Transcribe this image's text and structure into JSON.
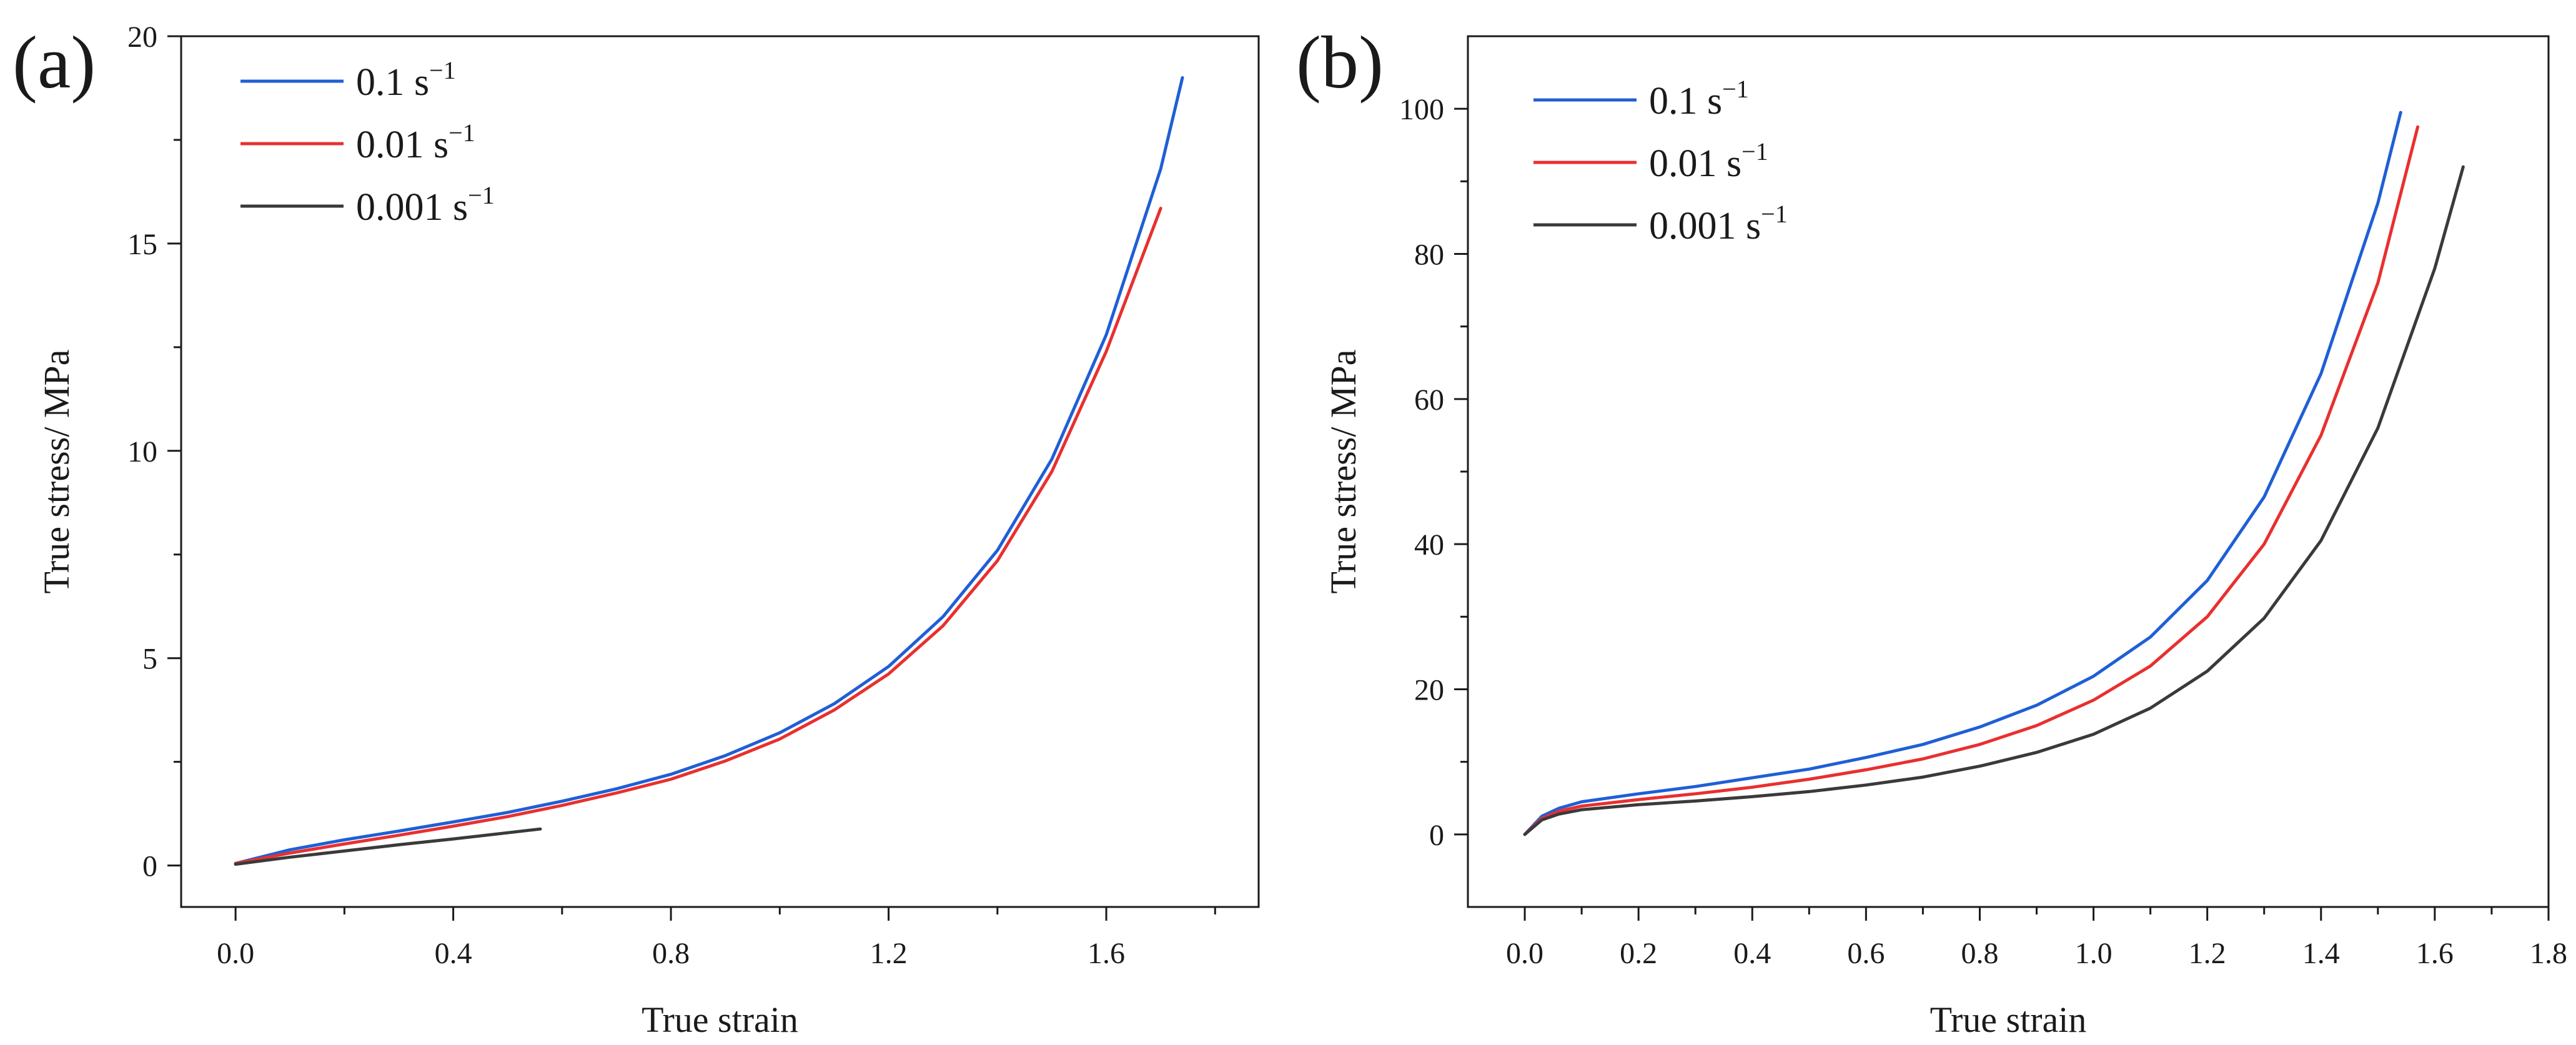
{
  "chart_data": [
    {
      "type": "line",
      "panel_label": "(a)",
      "xlabel": "True strain",
      "ylabel": "True stress/ MPa",
      "xlim": [
        -0.1,
        1.88
      ],
      "ylim": [
        -1,
        20
      ],
      "xticks": [
        0.0,
        0.4,
        0.8,
        1.2,
        1.6
      ],
      "xtick_labels": [
        "0.0",
        "0.4",
        "0.8",
        "1.2",
        "1.6"
      ],
      "yticks": [
        0,
        5,
        10,
        15,
        20
      ],
      "ytick_labels": [
        "0",
        "5",
        "10",
        "15",
        "20"
      ],
      "legend_position": "top-left",
      "series": [
        {
          "name": "0.1 s",
          "superscript": "−1",
          "color": "#1f5fd6",
          "x": [
            0,
            0.1,
            0.2,
            0.3,
            0.4,
            0.5,
            0.6,
            0.7,
            0.8,
            0.9,
            1.0,
            1.1,
            1.2,
            1.3,
            1.4,
            1.5,
            1.6,
            1.7,
            1.74
          ],
          "y": [
            0.05,
            0.38,
            0.62,
            0.83,
            1.05,
            1.28,
            1.55,
            1.85,
            2.2,
            2.65,
            3.2,
            3.9,
            4.8,
            6.0,
            7.6,
            9.8,
            12.8,
            16.8,
            19.0
          ]
        },
        {
          "name": "0.01 s",
          "superscript": "−1",
          "color": "#e8302f",
          "x": [
            0,
            0.1,
            0.2,
            0.3,
            0.4,
            0.5,
            0.6,
            0.7,
            0.8,
            0.9,
            1.0,
            1.1,
            1.2,
            1.3,
            1.4,
            1.5,
            1.6,
            1.7
          ],
          "y": [
            0.05,
            0.3,
            0.52,
            0.73,
            0.95,
            1.18,
            1.45,
            1.75,
            2.08,
            2.52,
            3.05,
            3.75,
            4.62,
            5.78,
            7.35,
            9.5,
            12.4,
            15.85
          ]
        },
        {
          "name": "0.001 s",
          "superscript": "−1",
          "color": "#3a3a3a",
          "x": [
            0,
            0.1,
            0.2,
            0.3,
            0.4,
            0.5,
            0.56
          ],
          "y": [
            0.03,
            0.2,
            0.35,
            0.5,
            0.64,
            0.79,
            0.88
          ]
        }
      ]
    },
    {
      "type": "line",
      "panel_label": "(b)",
      "xlabel": "True strain",
      "ylabel": "True stress/ MPa",
      "xlim": [
        -0.1,
        1.8
      ],
      "ylim": [
        -10,
        110
      ],
      "xticks": [
        0.0,
        0.2,
        0.4,
        0.6,
        0.8,
        1.0,
        1.2,
        1.4,
        1.6,
        1.8
      ],
      "xtick_labels": [
        "0.0",
        "0.2",
        "0.4",
        "0.6",
        "0.8",
        "1.0",
        "1.2",
        "1.4",
        "1.6",
        "1.8"
      ],
      "yticks": [
        0,
        20,
        40,
        60,
        80,
        100
      ],
      "ytick_labels": [
        "0",
        "20",
        "40",
        "60",
        "80",
        "100"
      ],
      "legend_position": "top-left",
      "series": [
        {
          "name": "0.1 s",
          "superscript": "−1",
          "color": "#1f5fd6",
          "x": [
            0,
            0.03,
            0.06,
            0.1,
            0.2,
            0.3,
            0.4,
            0.5,
            0.6,
            0.7,
            0.8,
            0.9,
            1.0,
            1.1,
            1.2,
            1.3,
            1.4,
            1.5,
            1.54
          ],
          "y": [
            0,
            2.5,
            3.6,
            4.5,
            5.6,
            6.6,
            7.8,
            9.0,
            10.6,
            12.4,
            14.8,
            17.8,
            21.8,
            27.2,
            35.0,
            46.5,
            63.5,
            87.0,
            99.5
          ]
        },
        {
          "name": "0.01 s",
          "superscript": "−1",
          "color": "#e8302f",
          "x": [
            0,
            0.03,
            0.06,
            0.1,
            0.2,
            0.3,
            0.4,
            0.5,
            0.6,
            0.7,
            0.8,
            0.9,
            1.0,
            1.1,
            1.2,
            1.3,
            1.4,
            1.5,
            1.57
          ],
          "y": [
            0,
            2.2,
            3.2,
            3.9,
            4.8,
            5.6,
            6.5,
            7.6,
            8.9,
            10.4,
            12.4,
            15.0,
            18.5,
            23.2,
            30.0,
            40.0,
            55.0,
            76.0,
            97.5
          ]
        },
        {
          "name": "0.001 s",
          "superscript": "−1",
          "color": "#3a3a3a",
          "x": [
            0,
            0.03,
            0.06,
            0.1,
            0.2,
            0.3,
            0.4,
            0.5,
            0.6,
            0.7,
            0.8,
            0.9,
            1.0,
            1.1,
            1.2,
            1.3,
            1.4,
            1.5,
            1.6,
            1.65
          ],
          "y": [
            0,
            2.0,
            2.8,
            3.4,
            4.1,
            4.6,
            5.2,
            5.9,
            6.8,
            7.9,
            9.4,
            11.3,
            13.8,
            17.4,
            22.5,
            29.8,
            40.5,
            56.0,
            78.0,
            92.0
          ]
        }
      ]
    }
  ]
}
